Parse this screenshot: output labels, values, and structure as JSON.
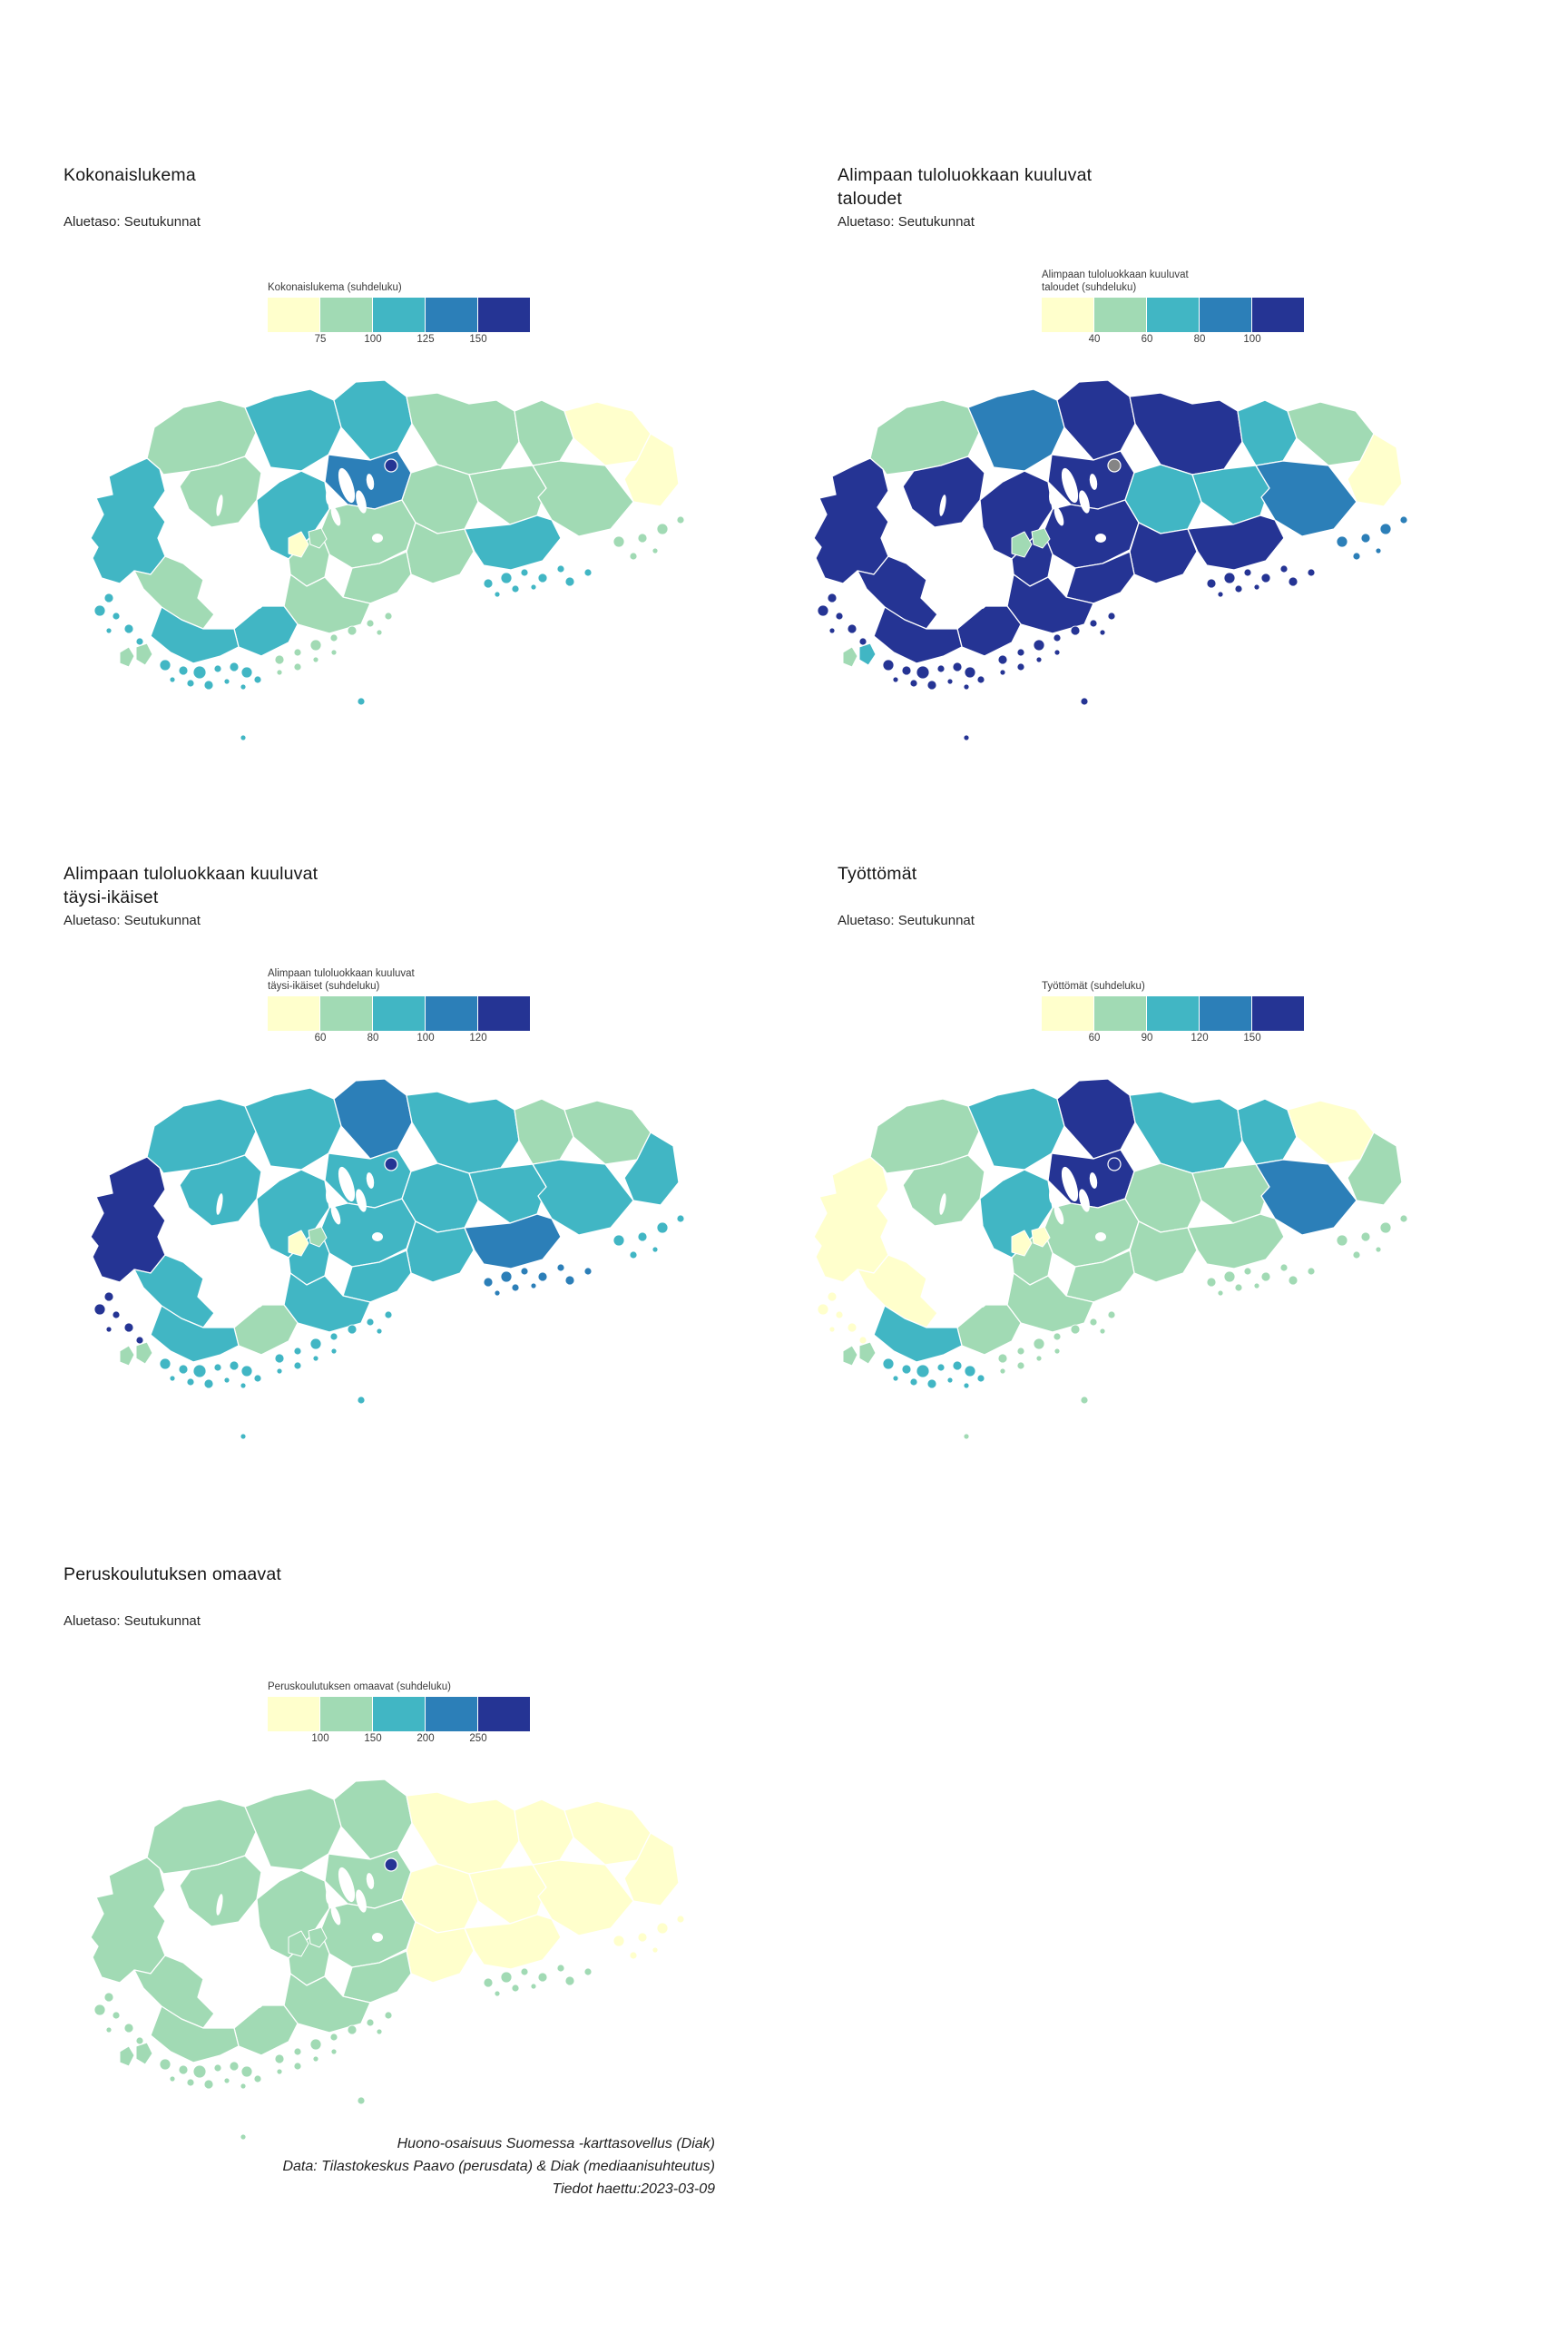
{
  "palette": {
    "classes": [
      "#ffffcc",
      "#a1dab4",
      "#41b6c4",
      "#2c7fb8",
      "#253494"
    ],
    "nodata": "#858585",
    "border": "#ffffff"
  },
  "subtitle_label": "Aluetaso: Seutukunnat",
  "maps": [
    {
      "title_line1": "Kokonaislukema",
      "title_line2": "",
      "subtitle": "Aluetaso: Seutukunnat",
      "legend_title_line1": "Kokonaislukema (suhdeluku)",
      "legend_title_line2": "",
      "ticks": [
        "75",
        "100",
        "125",
        "150"
      ]
    },
    {
      "title_line1": "Alimpaan tuloluokkaan kuuluvat",
      "title_line2": "taloudet",
      "subtitle": "Aluetaso: Seutukunnat",
      "legend_title_line1": "Alimpaan tuloluokkaan kuuluvat",
      "legend_title_line2": "taloudet (suhdeluku)",
      "ticks": [
        "40",
        "60",
        "80",
        "100"
      ]
    },
    {
      "title_line1": "Alimpaan tuloluokkaan kuuluvat",
      "title_line2": "täysi-ikäiset",
      "subtitle": "Aluetaso: Seutukunnat",
      "legend_title_line1": "Alimpaan tuloluokkaan kuuluvat",
      "legend_title_line2": "täysi-ikäiset (suhdeluku)",
      "ticks": [
        "60",
        "80",
        "100",
        "120"
      ]
    },
    {
      "title_line1": "Työttömät",
      "title_line2": "",
      "subtitle": "Aluetaso: Seutukunnat",
      "legend_title_line1": "Työttömät (suhdeluku)",
      "legend_title_line2": "",
      "ticks": [
        "60",
        "90",
        "120",
        "150"
      ]
    },
    {
      "title_line1": "Peruskoulutuksen omaavat",
      "title_line2": "",
      "subtitle": "Aluetaso: Seutukunnat",
      "legend_title_line1": "Peruskoulutuksen omaavat (suhdeluku)",
      "legend_title_line2": "",
      "ticks": [
        "100",
        "150",
        "200",
        "250"
      ]
    }
  ],
  "caption": {
    "line1": "Huono-osaisuus Suomessa -karttasovellus (Diak)",
    "line2": "Data: Tilastokeskus Paavo (perusdata) & Diak (mediaanisuhteutus)",
    "line3": "Tiedot haettu:2023-03-09"
  },
  "regions": [
    {
      "id": "vaasa",
      "classes": [
        2,
        4,
        4,
        0,
        1
      ]
    },
    {
      "id": "pori",
      "classes": [
        1,
        4,
        2,
        0,
        1
      ]
    },
    {
      "id": "coast-nw",
      "classes": [
        1,
        1,
        2,
        1,
        1
      ]
    },
    {
      "id": "seinajoki",
      "classes": [
        2,
        3,
        2,
        2,
        1
      ]
    },
    {
      "id": "saarijarvi",
      "classes": [
        2,
        4,
        3,
        4,
        1
      ]
    },
    {
      "id": "mikkeli",
      "classes": [
        1,
        4,
        2,
        2,
        0
      ]
    },
    {
      "id": "pieksamaki",
      "classes": [
        1,
        2,
        1,
        2,
        0
      ]
    },
    {
      "id": "ne-east-1",
      "classes": [
        0,
        1,
        1,
        0,
        0
      ]
    },
    {
      "id": "ne-east-2",
      "classes": [
        0,
        0,
        2,
        1,
        0
      ]
    },
    {
      "id": "kuusio",
      "classes": [
        1,
        4,
        2,
        1,
        1
      ]
    },
    {
      "id": "jyvaskyla",
      "classes": [
        3,
        4,
        2,
        4,
        1
      ]
    },
    {
      "id": "center-west",
      "classes": [
        2,
        4,
        2,
        2,
        1
      ]
    },
    {
      "id": "center-main",
      "classes": [
        1,
        4,
        2,
        1,
        1
      ]
    },
    {
      "id": "lahti",
      "classes": [
        1,
        2,
        2,
        1,
        0
      ]
    },
    {
      "id": "kouvola",
      "classes": [
        1,
        2,
        2,
        1,
        0
      ]
    },
    {
      "id": "lappeenranta",
      "classes": [
        1,
        3,
        2,
        3,
        0
      ]
    },
    {
      "id": "hameenlinna",
      "classes": [
        1,
        4,
        2,
        1,
        1
      ]
    },
    {
      "id": "center-yellow",
      "classes": [
        0,
        1,
        0,
        0,
        1
      ]
    },
    {
      "id": "center-green-small",
      "classes": [
        1,
        1,
        1,
        0,
        1
      ]
    },
    {
      "id": "porvoo",
      "classes": [
        1,
        4,
        2,
        1,
        0
      ]
    },
    {
      "id": "kotka",
      "classes": [
        2,
        4,
        3,
        1,
        0
      ]
    },
    {
      "id": "helsinki",
      "classes": [
        1,
        4,
        2,
        1,
        1
      ]
    },
    {
      "id": "raasepori",
      "classes": [
        1,
        4,
        2,
        1,
        1
      ]
    },
    {
      "id": "salo",
      "classes": [
        2,
        4,
        1,
        1,
        1
      ]
    },
    {
      "id": "turku",
      "classes": [
        2,
        4,
        2,
        2,
        1
      ]
    },
    {
      "id": "sw-pair-a",
      "classes": [
        1,
        1,
        1,
        1,
        1
      ]
    },
    {
      "id": "sw-pair-b",
      "classes": [
        1,
        2,
        1,
        1,
        1
      ]
    },
    {
      "id": "jyv-city",
      "classes": [
        4,
        -1,
        4,
        4,
        4
      ]
    },
    {
      "id": "isl-w",
      "classes": [
        2,
        4,
        4,
        0,
        1
      ]
    },
    {
      "id": "isl-sw",
      "classes": [
        2,
        4,
        2,
        2,
        1
      ]
    },
    {
      "id": "isl-s",
      "classes": [
        1,
        4,
        2,
        1,
        1
      ]
    },
    {
      "id": "isl-se",
      "classes": [
        2,
        4,
        3,
        1,
        1
      ]
    },
    {
      "id": "isl-e",
      "classes": [
        1,
        3,
        2,
        1,
        0
      ]
    },
    {
      "id": "isl-far-s",
      "classes": [
        2,
        4,
        2,
        1,
        1
      ]
    }
  ]
}
